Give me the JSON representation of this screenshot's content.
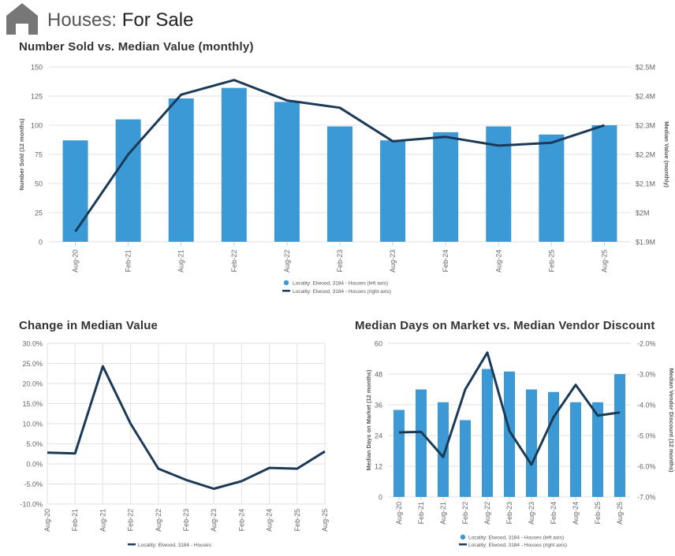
{
  "header": {
    "title_prefix": "Houses:",
    "title_main": "For Sale"
  },
  "colors": {
    "bar": "#3b9ad6",
    "line": "#1b3a57",
    "grid": "#e2e2e2",
    "axis_text": "#666666"
  },
  "chart_data": [
    {
      "id": "number-sold-vs-median-value",
      "type": "bar+line",
      "title": "Number Sold vs. Median Value (monthly)",
      "categories": [
        "Aug-20",
        "Feb-21",
        "Aug-21",
        "Feb-22",
        "Aug-22",
        "Feb-23",
        "Aug-23",
        "Feb-24",
        "Aug-24",
        "Feb-25",
        "Aug-25"
      ],
      "series": [
        {
          "name": "Locality: Elwood, 3184 - Houses (left axis)",
          "type": "bar",
          "axis": "left",
          "values": [
            87,
            105,
            123,
            132,
            120,
            99,
            87,
            94,
            99,
            92,
            100
          ]
        },
        {
          "name": "Locality: Elwood, 3184 - Houses (right axis)",
          "type": "line",
          "axis": "right",
          "values": [
            1.935,
            2.2,
            2.405,
            2.455,
            2.385,
            2.36,
            2.245,
            2.26,
            2.23,
            2.24,
            2.3
          ]
        }
      ],
      "ylabel_left": "Number Sold (12 months)",
      "ylabel_right": "Median Value (monthly)",
      "ylim_left": [
        0,
        150
      ],
      "yticks_left": [
        "150",
        "125",
        "100",
        "75",
        "50",
        "25",
        "0"
      ],
      "ylim_right": [
        1.9,
        2.5
      ],
      "yticks_right": [
        "$2.5M",
        "$2.4M",
        "$2.3M",
        "$2.2M",
        "$2.1M",
        "$2M",
        "$1.9M"
      ],
      "legend": [
        "Locality: Elwood, 3184 - Houses (left axis)",
        "Locality: Elwood, 3184 - Houses (right axis)"
      ]
    },
    {
      "id": "change-in-median-value",
      "type": "line",
      "title": "Change in Median Value",
      "categories": [
        "Aug-20",
        "Feb-21",
        "Aug-21",
        "Feb-22",
        "Aug-22",
        "Feb-23",
        "Aug-23",
        "Feb-24",
        "Aug-24",
        "Feb-25",
        "Aug-25"
      ],
      "series": [
        {
          "name": "Locality: Elwood, 3184 - Houses",
          "values": [
            2.8,
            2.6,
            24.3,
            10.0,
            -1.2,
            -4.0,
            -6.2,
            -4.3,
            -1.0,
            -1.2,
            3.1
          ]
        }
      ],
      "ylim": [
        -10,
        30
      ],
      "yticks": [
        "30.0%",
        "25.0%",
        "20.0%",
        "15.0%",
        "10.0%",
        "5.0%",
        "0.0%",
        "-5.0%",
        "-10.0%"
      ],
      "legend": [
        "Locality: Elwood, 3184 - Houses"
      ]
    },
    {
      "id": "days-on-market-vs-vendor-discount",
      "type": "bar+line",
      "title": "Median Days on Market vs. Median Vendor Discount",
      "categories": [
        "Aug-20",
        "Feb-21",
        "Aug-21",
        "Feb-22",
        "Aug-22",
        "Feb-23",
        "Aug-23",
        "Feb-24",
        "Aug-24",
        "Feb-25",
        "Aug-25"
      ],
      "series": [
        {
          "name": "Locality: Elwood, 3184 - Houses (left axis)",
          "type": "bar",
          "axis": "left",
          "values": [
            34,
            42,
            37,
            30,
            50,
            49,
            42,
            41,
            37,
            37,
            48
          ]
        },
        {
          "name": "Locality: Elwood, 3184 - Houses (right axis)",
          "type": "line",
          "axis": "right",
          "values": [
            -4.9,
            -4.88,
            -5.7,
            -3.5,
            -2.3,
            -4.85,
            -5.95,
            -4.4,
            -3.35,
            -4.35,
            -4.25
          ]
        }
      ],
      "ylabel_left": "Median Days on Market (12 months)",
      "ylabel_right": "Median Vendor Discount (12 months)",
      "ylim_left": [
        0,
        60
      ],
      "yticks_left": [
        "60",
        "48",
        "36",
        "24",
        "12",
        "0"
      ],
      "ylim_right": [
        -7,
        -2
      ],
      "yticks_right": [
        "-2.0%",
        "-3.0%",
        "-4.0%",
        "-5.0%",
        "-6.0%",
        "-7.0%"
      ],
      "legend": [
        "Locality: Elwood, 3184 - Houses (left axis)",
        "Locality: Elwood, 3184 - Houses (right axis)"
      ]
    }
  ]
}
